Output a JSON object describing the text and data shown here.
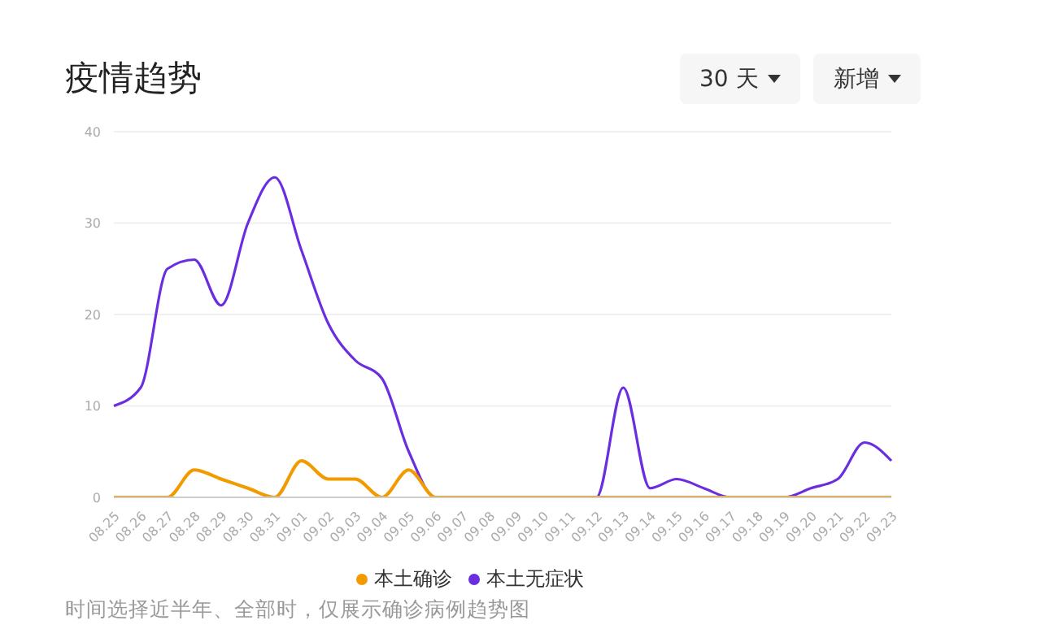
{
  "chart_data": {
    "type": "line",
    "title": "疫情趋势",
    "annotations": [
      "30 天",
      "新增",
      "时间选择近半年、全部时，仅展示确诊病例趋势图"
    ],
    "categories": [
      "08.25",
      "08.26",
      "08.27",
      "08.28",
      "08.29",
      "08.30",
      "08.31",
      "09.01",
      "09.02",
      "09.03",
      "09.04",
      "09.05",
      "09.06",
      "09.07",
      "09.08",
      "09.09",
      "09.10",
      "09.11",
      "09.12",
      "09.13",
      "09.14",
      "09.15",
      "09.16",
      "09.17",
      "09.18",
      "09.19",
      "09.20",
      "09.21",
      "09.22",
      "09.23"
    ],
    "series": [
      {
        "name": "本土确诊",
        "color": "#f29b00",
        "values": [
          0,
          0,
          0,
          3,
          2,
          1,
          0,
          4,
          2,
          2,
          0,
          3,
          0,
          0,
          0,
          0,
          0,
          0,
          0,
          0,
          0,
          0,
          0,
          0,
          0,
          0,
          0,
          0,
          0,
          0
        ]
      },
      {
        "name": "本土无症状",
        "color": "#6a2ee0",
        "values": [
          10,
          12,
          25,
          26,
          21,
          30,
          35,
          27,
          19,
          15,
          13,
          5,
          0,
          0,
          0,
          0,
          0,
          0,
          0,
          12,
          1,
          2,
          1,
          0,
          0,
          0,
          1,
          2,
          6,
          4
        ]
      }
    ],
    "ylim": [
      0,
      40
    ],
    "yticks": [
      0,
      10,
      20,
      30,
      40
    ],
    "grid": "y",
    "legend": "bottom",
    "marker": "none",
    "line_style": "solid"
  }
}
